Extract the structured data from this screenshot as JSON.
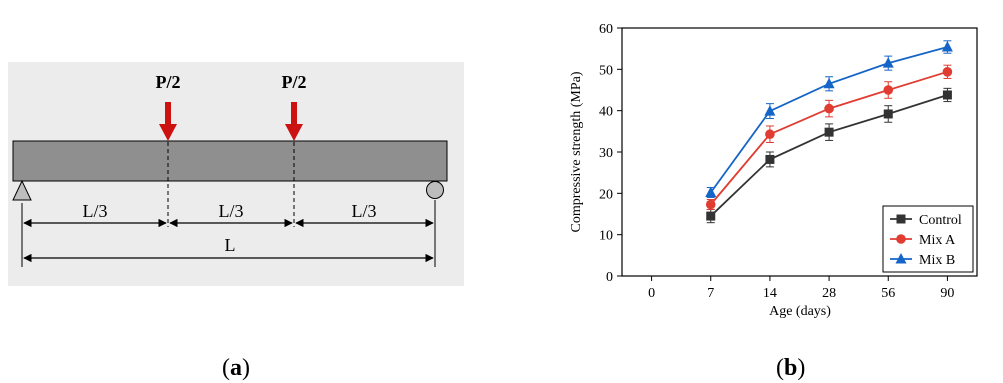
{
  "captions": {
    "left": "a",
    "right": "b"
  },
  "beam_diagram": {
    "load_labels": [
      "P/2",
      "P/2"
    ],
    "segment_labels": [
      "L/3",
      "L/3",
      "L/3"
    ],
    "total_length_label": "L",
    "colors": {
      "beam": "#8f8f8f",
      "load_arrow": "#cc1111",
      "support": "#bdbdbd"
    }
  },
  "chart_data": {
    "type": "line",
    "xlabel": "Age (days)",
    "ylabel": "Compressive strength (MPa)",
    "x_tick_labels": [
      "0",
      "7",
      "14",
      "28",
      "56",
      "90"
    ],
    "categories": [
      "7",
      "14",
      "28",
      "56",
      "90"
    ],
    "ylim": [
      0,
      60
    ],
    "y_ticks": [
      0,
      10,
      20,
      30,
      40,
      50,
      60
    ],
    "grid": false,
    "legend_position": "bottom-right",
    "series": [
      {
        "name": "Control",
        "color": "#333333",
        "marker": "square",
        "values": [
          14.5,
          28.2,
          34.8,
          39.2,
          43.8
        ],
        "errors": [
          1.6,
          1.8,
          2.0,
          2.0,
          1.6
        ]
      },
      {
        "name": "Mix A",
        "color": "#e03c31",
        "marker": "circle",
        "values": [
          17.3,
          34.3,
          40.5,
          45.0,
          49.4
        ],
        "errors": [
          1.2,
          2.0,
          2.0,
          2.0,
          1.6
        ]
      },
      {
        "name": "Mix B",
        "color": "#1565c8",
        "marker": "triangle",
        "values": [
          20.2,
          39.9,
          46.5,
          51.5,
          55.4
        ],
        "errors": [
          1.2,
          1.8,
          1.7,
          1.7,
          1.5
        ]
      }
    ]
  }
}
